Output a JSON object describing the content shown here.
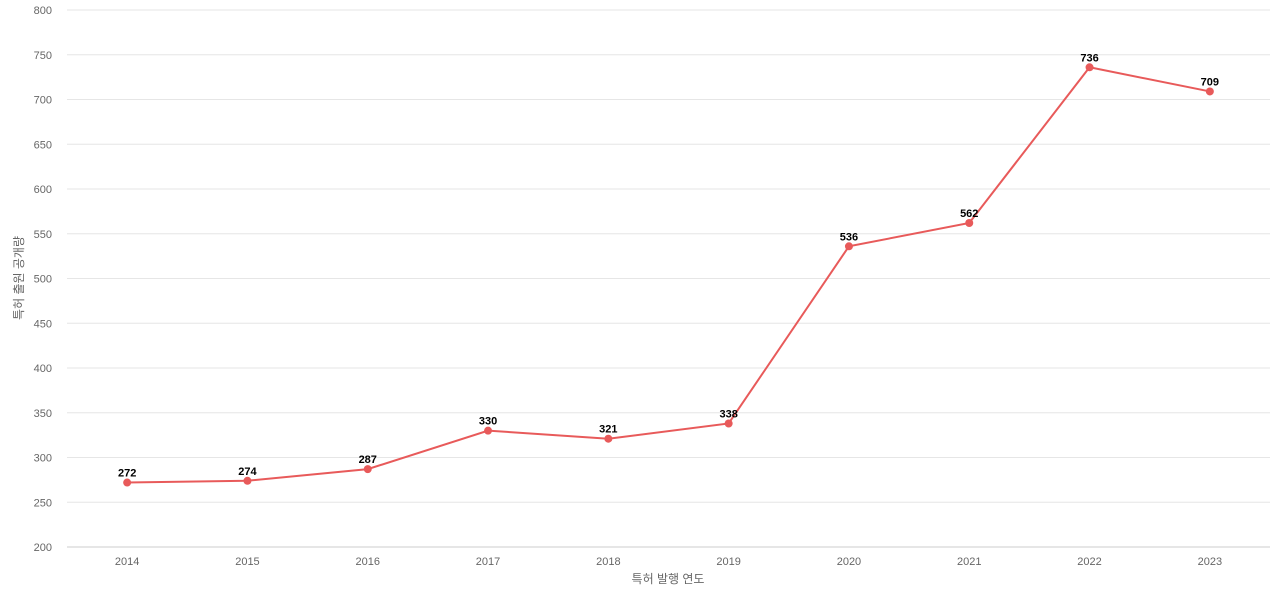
{
  "colors": {
    "series": "#e85a5a",
    "grid": "#e6e6e6",
    "axis_text": "#666666",
    "label_text": "#000000"
  },
  "chart_data": {
    "type": "line",
    "xlabel": "특허 발행 연도",
    "ylabel": "특허 출원 공개량",
    "categories": [
      "2014",
      "2015",
      "2016",
      "2017",
      "2018",
      "2019",
      "2020",
      "2021",
      "2022",
      "2023"
    ],
    "series": [
      {
        "values": [
          272,
          274,
          287,
          330,
          321,
          338,
          536,
          562,
          736,
          709
        ]
      }
    ],
    "ylim": [
      200,
      800
    ],
    "yticks": [
      200,
      250,
      300,
      350,
      400,
      450,
      500,
      550,
      600,
      650,
      700,
      750,
      800
    ],
    "grid": true,
    "data_labels": true,
    "legend": "none"
  }
}
